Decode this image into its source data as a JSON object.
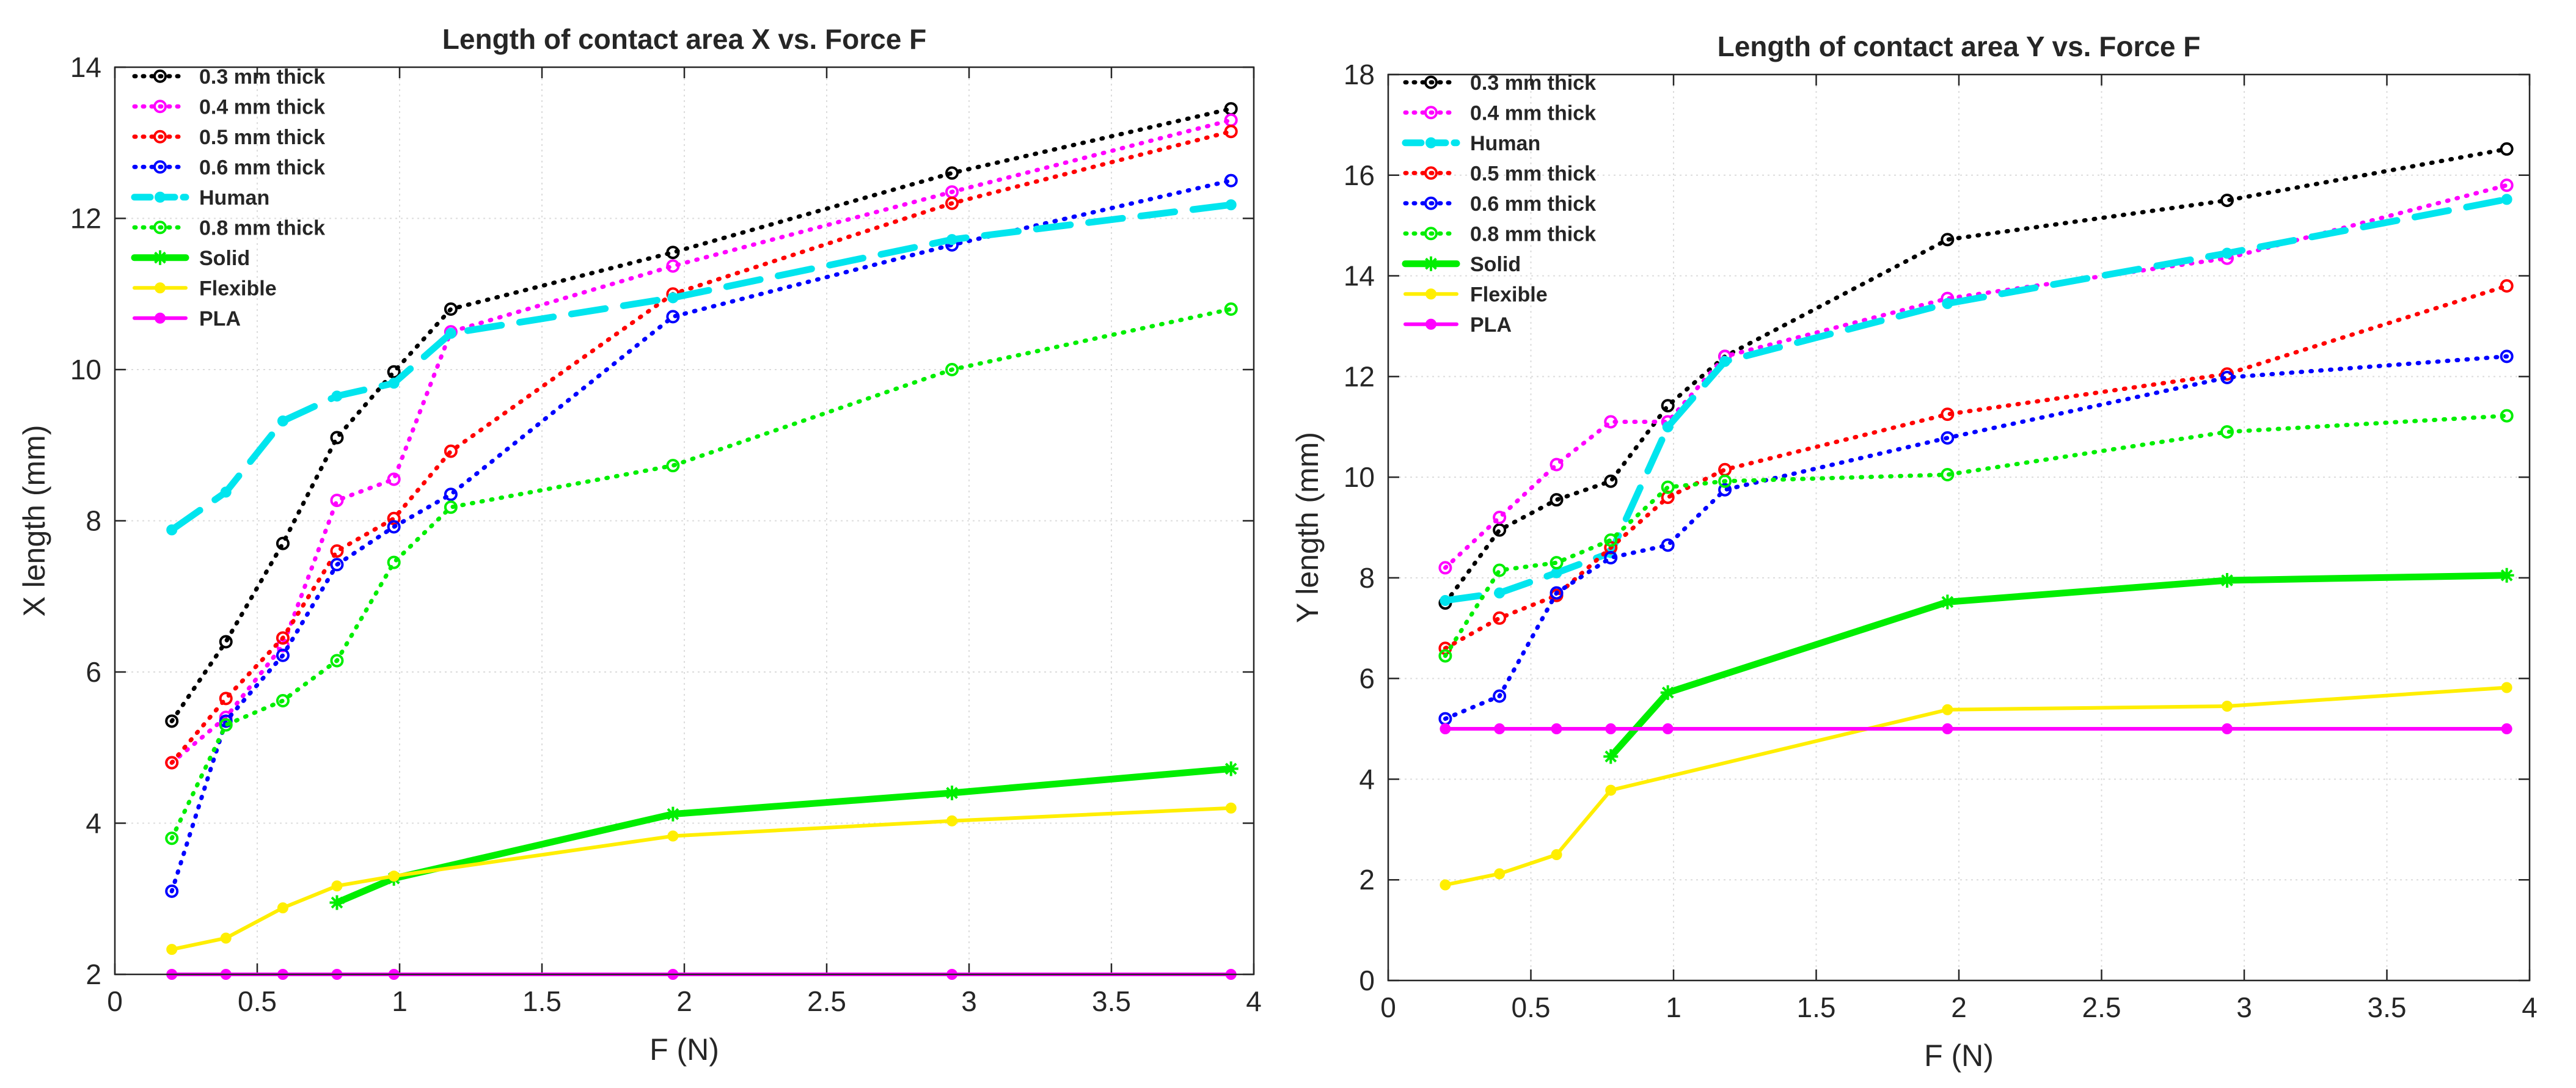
{
  "chart_data": [
    {
      "type": "line",
      "title": "Length of contact area X vs. Force F",
      "xlabel": "F (N)",
      "ylabel": "X length (mm)",
      "xlim": [
        0,
        4
      ],
      "ylim": [
        2,
        14
      ],
      "xticks": [
        "0",
        "0.5",
        "1",
        "1.5",
        "2",
        "2.5",
        "3",
        "3.5",
        "4"
      ],
      "yticks": [
        "2",
        "4",
        "6",
        "8",
        "10",
        "12",
        "14"
      ],
      "grid": true,
      "legend_position": "top-left",
      "series": [
        {
          "name": "0.3 mm thick",
          "color": "#000000",
          "style": "dotted",
          "marker": "circle",
          "x": [
            0.2,
            0.39,
            0.59,
            0.78,
            0.98,
            1.18,
            1.96,
            2.94,
            3.92
          ],
          "y": [
            5.35,
            6.4,
            7.7,
            9.1,
            9.97,
            10.8,
            11.55,
            12.6,
            13.45
          ]
        },
        {
          "name": "0.4 mm thick",
          "color": "#ff00ff",
          "style": "dotted",
          "marker": "circle",
          "x": [
            0.2,
            0.39,
            0.59,
            0.78,
            0.98,
            1.18,
            1.96,
            2.94,
            3.92
          ],
          "y": [
            4.8,
            5.4,
            6.35,
            8.27,
            8.55,
            10.5,
            11.37,
            12.35,
            13.3
          ]
        },
        {
          "name": "0.5 mm thick",
          "color": "#ff0000",
          "style": "dotted",
          "marker": "circle",
          "x": [
            0.2,
            0.39,
            0.59,
            0.78,
            0.98,
            1.18,
            1.96,
            2.94,
            3.92
          ],
          "y": [
            4.8,
            5.65,
            6.45,
            7.6,
            8.03,
            8.92,
            11.0,
            12.2,
            13.15
          ]
        },
        {
          "name": "0.6 mm thick",
          "color": "#0000ff",
          "style": "dotted",
          "marker": "circle",
          "x": [
            0.2,
            0.39,
            0.59,
            0.78,
            0.98,
            1.18,
            1.96,
            2.94,
            3.92
          ],
          "y": [
            3.1,
            5.35,
            6.22,
            7.42,
            7.92,
            8.35,
            10.7,
            11.65,
            12.5
          ]
        },
        {
          "name": "Human",
          "color": "#00e5ee",
          "style": "dashed",
          "marker": "dot",
          "x": [
            0.2,
            0.39,
            0.59,
            0.78,
            0.98,
            1.18,
            1.96,
            2.94,
            3.92
          ],
          "y": [
            7.88,
            8.38,
            9.32,
            9.65,
            9.82,
            10.48,
            10.95,
            11.72,
            12.18
          ]
        },
        {
          "name": "0.8 mm thick",
          "color": "#00ee00",
          "style": "dotted",
          "marker": "circle",
          "x": [
            0.2,
            0.39,
            0.59,
            0.78,
            0.98,
            1.18,
            1.96,
            2.94,
            3.92
          ],
          "y": [
            3.8,
            5.3,
            5.62,
            6.15,
            7.45,
            8.18,
            8.73,
            10.0,
            10.8
          ]
        },
        {
          "name": "Solid",
          "color": "#00ee00",
          "style": "solid-thick",
          "marker": "star",
          "x": [
            0.78,
            0.98,
            1.96,
            2.94,
            3.92
          ],
          "y": [
            2.95,
            3.27,
            4.12,
            4.4,
            4.72
          ]
        },
        {
          "name": "Flexible",
          "color": "#ffee00",
          "style": "solid",
          "marker": "dot",
          "x": [
            0.2,
            0.39,
            0.59,
            0.78,
            0.98,
            1.96,
            2.94,
            3.92
          ],
          "y": [
            2.33,
            2.48,
            2.88,
            3.17,
            3.3,
            3.83,
            4.03,
            4.2
          ]
        },
        {
          "name": "PLA",
          "color": "#ff00ff",
          "style": "solid",
          "marker": "dot",
          "x": [
            0.2,
            0.39,
            0.59,
            0.78,
            0.98,
            1.96,
            2.94,
            3.92
          ],
          "y": [
            2.0,
            2.0,
            2.0,
            2.0,
            2.0,
            2.0,
            2.0,
            2.0
          ]
        }
      ]
    },
    {
      "type": "line",
      "title": "Length of contact area Y vs. Force F",
      "xlabel": "F (N)",
      "ylabel": "Y length (mm)",
      "xlim": [
        0,
        4
      ],
      "ylim": [
        0,
        18
      ],
      "xticks": [
        "0",
        "0.5",
        "1",
        "1.5",
        "2",
        "2.5",
        "3",
        "3.5",
        "4"
      ],
      "yticks": [
        "0",
        "2",
        "4",
        "6",
        "8",
        "10",
        "12",
        "14",
        "16",
        "18"
      ],
      "grid": true,
      "legend_position": "top-left",
      "series": [
        {
          "name": "0.3 mm thick",
          "color": "#000000",
          "style": "dotted",
          "marker": "circle",
          "x": [
            0.2,
            0.39,
            0.59,
            0.78,
            0.98,
            1.18,
            1.96,
            2.94,
            3.92
          ],
          "y": [
            7.5,
            8.95,
            9.55,
            9.92,
            11.42,
            12.4,
            14.72,
            15.5,
            16.52
          ]
        },
        {
          "name": "0.4 mm thick",
          "color": "#ff00ff",
          "style": "dotted",
          "marker": "circle",
          "x": [
            0.2,
            0.39,
            0.59,
            0.78,
            0.98,
            1.18,
            1.96,
            2.94,
            3.92
          ],
          "y": [
            8.2,
            9.2,
            10.25,
            11.1,
            11.1,
            12.4,
            13.55,
            14.35,
            15.8
          ]
        },
        {
          "name": "Human",
          "color": "#00e5ee",
          "style": "dashed",
          "marker": "dot",
          "x": [
            0.2,
            0.39,
            0.59,
            0.78,
            0.98,
            1.18,
            1.96,
            2.94,
            3.92
          ],
          "y": [
            7.55,
            7.7,
            8.1,
            8.5,
            11.0,
            12.3,
            13.45,
            14.45,
            15.52
          ]
        },
        {
          "name": "0.5 mm thick",
          "color": "#ff0000",
          "style": "dotted",
          "marker": "circle",
          "x": [
            0.2,
            0.39,
            0.59,
            0.78,
            0.98,
            1.18,
            1.96,
            2.94,
            3.92
          ],
          "y": [
            6.6,
            7.2,
            7.65,
            8.6,
            9.6,
            10.15,
            11.25,
            12.05,
            13.8
          ]
        },
        {
          "name": "0.6 mm thick",
          "color": "#0000ff",
          "style": "dotted",
          "marker": "circle",
          "x": [
            0.2,
            0.39,
            0.59,
            0.78,
            0.98,
            1.18,
            1.96,
            2.94,
            3.92
          ],
          "y": [
            5.2,
            5.65,
            7.7,
            8.4,
            8.65,
            9.75,
            10.78,
            11.98,
            12.4
          ]
        },
        {
          "name": "0.8 mm thick",
          "color": "#00ee00",
          "style": "dotted",
          "marker": "circle",
          "x": [
            0.2,
            0.39,
            0.59,
            0.78,
            0.98,
            1.18,
            1.96,
            2.94,
            3.92
          ],
          "y": [
            6.45,
            8.15,
            8.3,
            8.75,
            9.8,
            9.92,
            10.05,
            10.9,
            11.22
          ]
        },
        {
          "name": "Solid",
          "color": "#00ee00",
          "style": "solid-thick",
          "marker": "star",
          "x": [
            0.78,
            0.98,
            1.96,
            2.94,
            3.92
          ],
          "y": [
            4.45,
            5.72,
            7.52,
            7.95,
            8.05
          ]
        },
        {
          "name": "Flexible",
          "color": "#ffee00",
          "style": "solid",
          "marker": "dot",
          "x": [
            0.2,
            0.39,
            0.59,
            0.78,
            1.96,
            2.94,
            3.92
          ],
          "y": [
            1.9,
            2.12,
            2.5,
            3.78,
            5.38,
            5.45,
            5.82
          ]
        },
        {
          "name": "PLA",
          "color": "#ff00ff",
          "style": "solid",
          "marker": "dot",
          "x": [
            0.2,
            0.39,
            0.59,
            0.78,
            0.98,
            1.96,
            2.94,
            3.92
          ],
          "y": [
            5.0,
            5.0,
            5.0,
            5.0,
            5.0,
            5.0,
            5.0,
            5.0
          ]
        }
      ]
    }
  ]
}
